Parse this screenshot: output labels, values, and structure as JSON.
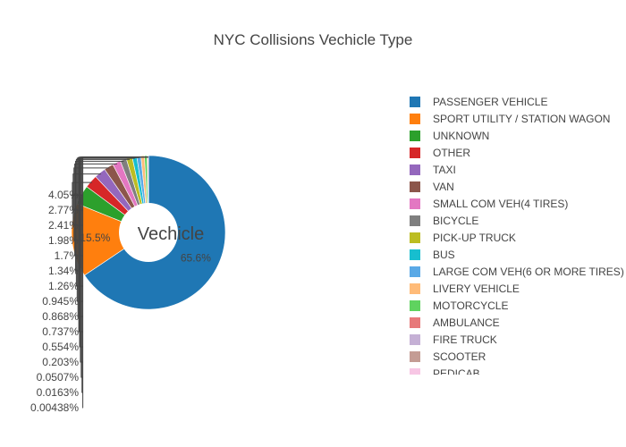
{
  "chart_data": {
    "type": "pie",
    "title": "NYC Collisions Vechicle Type",
    "hole_label": "Vechicle",
    "legend_position": "right",
    "slices": [
      {
        "label": "PASSENGER VEHICLE",
        "value": 65.6,
        "value_text": "65.6%",
        "color": "#1f77b4"
      },
      {
        "label": "SPORT UTILITY / STATION WAGON",
        "value": 15.5,
        "value_text": "15.5%",
        "color": "#ff7f0e"
      },
      {
        "label": "UNKNOWN",
        "value": 4.05,
        "value_text": "4.05%",
        "color": "#2ca02c"
      },
      {
        "label": "OTHER",
        "value": 2.77,
        "value_text": "2.77%",
        "color": "#d62728"
      },
      {
        "label": "TAXI",
        "value": 2.41,
        "value_text": "2.41%",
        "color": "#9467bd"
      },
      {
        "label": "VAN",
        "value": 1.98,
        "value_text": "1.98%",
        "color": "#8c564b"
      },
      {
        "label": "SMALL COM VEH(4 TIRES)",
        "value": 1.7,
        "value_text": "1.7%",
        "color": "#e377c2"
      },
      {
        "label": "BICYCLE",
        "value": 1.34,
        "value_text": "1.34%",
        "color": "#7f7f7f"
      },
      {
        "label": "PICK-UP TRUCK",
        "value": 1.26,
        "value_text": "1.26%",
        "color": "#bcbd22"
      },
      {
        "label": "BUS",
        "value": 0.945,
        "value_text": "0.945%",
        "color": "#17becf"
      },
      {
        "label": "LARGE COM VEH(6 OR MORE TIRES)",
        "value": 0.868,
        "value_text": "0.868%",
        "color": "#5aa9e6"
      },
      {
        "label": "LIVERY VEHICLE",
        "value": 0.737,
        "value_text": "0.737%",
        "color": "#ffbb78"
      },
      {
        "label": "MOTORCYCLE",
        "value": 0.554,
        "value_text": "0.554%",
        "color": "#5fd35f"
      },
      {
        "label": "AMBULANCE",
        "value": 0.203,
        "value_text": "0.203%",
        "color": "#e7797a"
      },
      {
        "label": "FIRE TRUCK",
        "value": 0.0507,
        "value_text": "0.0507%",
        "color": "#c5b0d5"
      },
      {
        "label": "SCOOTER",
        "value": 0.0163,
        "value_text": "0.0163%",
        "color": "#c49c94"
      },
      {
        "label": "PEDICAB",
        "value": 0.00438,
        "value_text": "0.00438%",
        "color": "#f7c6e4"
      }
    ]
  }
}
